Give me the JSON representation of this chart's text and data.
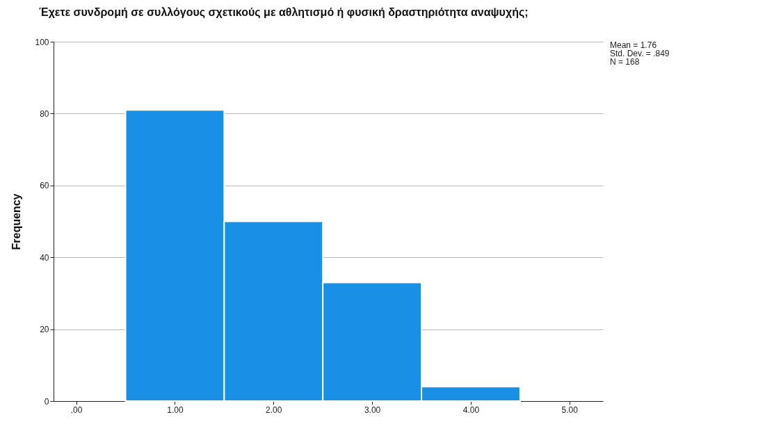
{
  "chart_data": {
    "type": "histogram",
    "title": "Έχετε συνδρομή σε συλλόγους σχετικούς με αθλητισμό ή φυσική δραστηριότητα αναψυχής;",
    "ylabel": "Frequency",
    "bins": [
      0.5,
      1.5,
      2.5,
      3.5,
      4.5
    ],
    "values": [
      81,
      50,
      33,
      4
    ],
    "color": "#1a8fe6",
    "xlim": [
      -0.23,
      5.34
    ],
    "xticks": [
      {
        "value": 0,
        "label": ".00"
      },
      {
        "value": 1,
        "label": "1.00"
      },
      {
        "value": 2,
        "label": "2.00"
      },
      {
        "value": 3,
        "label": "3.00"
      },
      {
        "value": 4,
        "label": "4.00"
      },
      {
        "value": 5,
        "label": "5.00"
      }
    ],
    "ylim": [
      0,
      100
    ],
    "yticks": [
      0,
      20,
      40,
      60,
      80,
      100
    ],
    "grid": "y",
    "annotations": [
      "Mean = 1.76",
      "Std. Dev. = .849",
      "N = 168"
    ]
  }
}
